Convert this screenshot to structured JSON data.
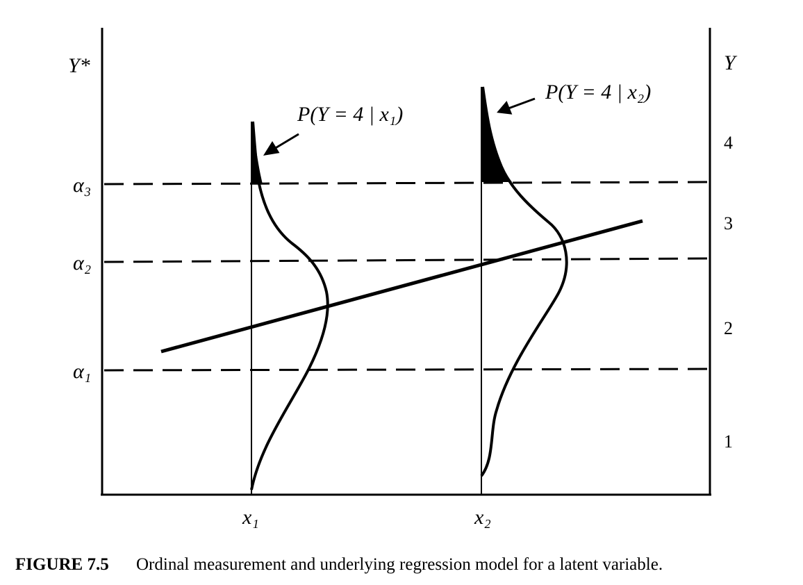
{
  "axes": {
    "left_label": "Y*",
    "right_label": "Y"
  },
  "thresholds": [
    "α₃",
    "α₂",
    "α₁"
  ],
  "categories": [
    "4",
    "3",
    "2",
    "1"
  ],
  "annotations": [
    "P(Y = 4 | x₁)",
    "P(Y = 4 | x₂)"
  ],
  "x_labels": [
    "x₁",
    "x₂"
  ],
  "caption": {
    "label": "FIGURE 7.5",
    "text": "Ordinal measurement and underlying regression model for a latent variable."
  }
}
